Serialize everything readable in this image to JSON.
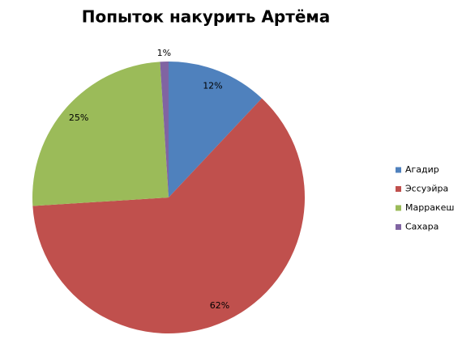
{
  "chart_data": {
    "type": "pie",
    "title": "Попыток накурить Артёма",
    "categories": [
      "Агадир",
      "Эссуэйра",
      "Марракеш",
      "Сахара"
    ],
    "values": [
      12,
      62,
      25,
      1
    ],
    "value_labels": [
      "12%",
      "62%",
      "25%",
      "1%"
    ],
    "colors": [
      "#4f81bd",
      "#c0504d",
      "#9bbb59",
      "#8064a2"
    ],
    "legend": "right"
  }
}
